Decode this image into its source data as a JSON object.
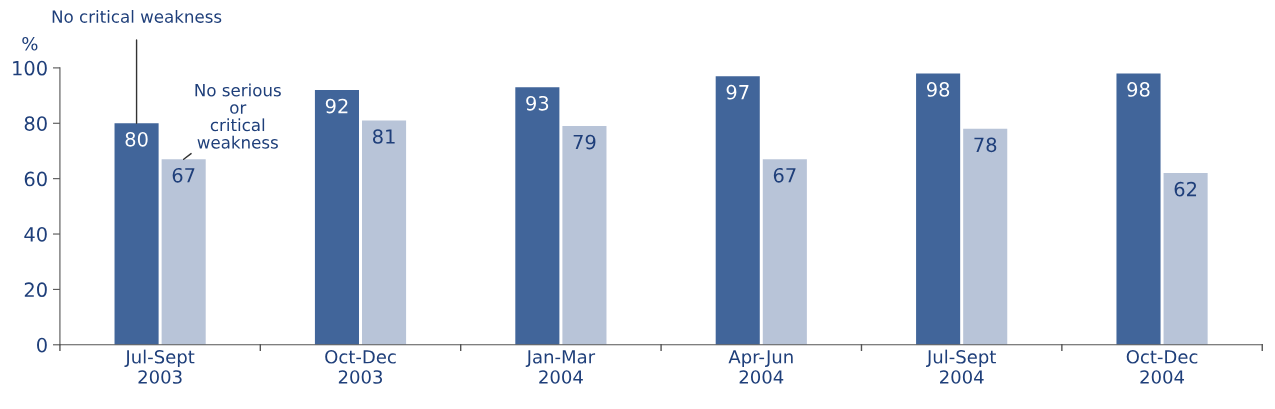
{
  "chart_data": {
    "type": "bar",
    "ylabel": "%",
    "categories": [
      "Jul-Sept\n2003",
      "Oct-Dec\n2003",
      "Jan-Mar\n2004",
      "Apr-Jun\n2004",
      "Jul-Sept\n2004",
      "Oct-Dec\n2004"
    ],
    "series": [
      {
        "name": "No critical weakness",
        "color": "#41659a",
        "values": [
          80,
          92,
          93,
          97,
          98,
          98
        ]
      },
      {
        "name": "No serious or critical weakness",
        "color": "#b8c4d8",
        "values": [
          67,
          81,
          79,
          67,
          78,
          62
        ]
      }
    ],
    "ylim": [
      0,
      100
    ],
    "yticks": [
      0,
      20,
      40,
      60,
      80,
      100
    ],
    "data_labels": true,
    "grid": false,
    "legend": false
  }
}
